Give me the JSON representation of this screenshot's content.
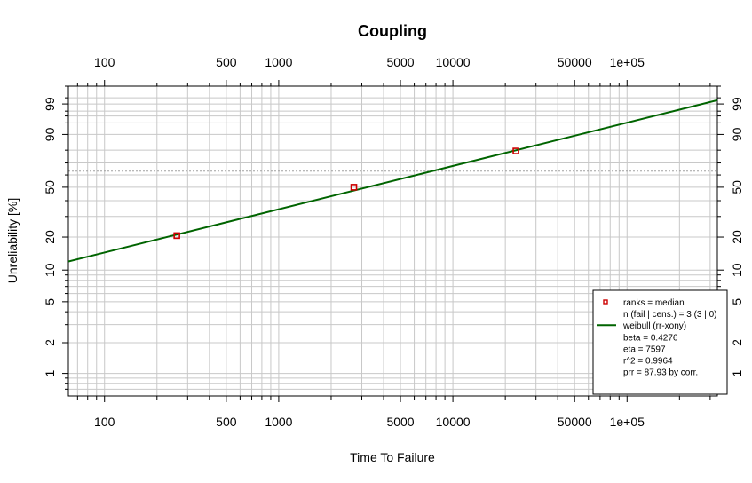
{
  "chart_data": {
    "type": "scatter",
    "title": "Coupling",
    "xlabel": "Time To Failure",
    "ylabel": "Unreliability [%]",
    "x_scale": "log",
    "y_scale": "weibull",
    "xlim": [
      62,
      330000
    ],
    "ylim": [
      0.6,
      99.9
    ],
    "x_ticks": [
      100,
      500,
      1000,
      5000,
      10000,
      50000,
      100000
    ],
    "x_tick_labels": [
      "100",
      "500",
      "1000",
      "5000",
      "10000",
      "50000",
      "1e+05"
    ],
    "y_ticks": [
      1,
      2,
      5,
      10,
      20,
      50,
      90,
      99
    ],
    "y_tick_labels": [
      "1",
      "2",
      "5",
      "10",
      "20",
      "50",
      "90",
      "99"
    ],
    "grid": true,
    "reference_line_y": 63.2,
    "series": [
      {
        "name": "ranks = median",
        "kind": "points",
        "color": "#cc0000",
        "points": [
          {
            "x": 260,
            "y": 20.6
          },
          {
            "x": 2700,
            "y": 50.0
          },
          {
            "x": 23000,
            "y": 79.4
          }
        ]
      },
      {
        "name": "weibull (rr-xony)",
        "kind": "line",
        "color": "#006400",
        "beta": 0.4276,
        "eta": 7597
      }
    ],
    "legend": {
      "position": "bottom-right",
      "entries": [
        "ranks = median",
        "n (fail | cens.) = 3 (3 | 0)",
        "weibull (rr-xony)",
        "beta = 0.4276",
        "eta = 7597",
        "r^2 = 0.9964",
        "prr = 87.93 by corr."
      ]
    }
  }
}
